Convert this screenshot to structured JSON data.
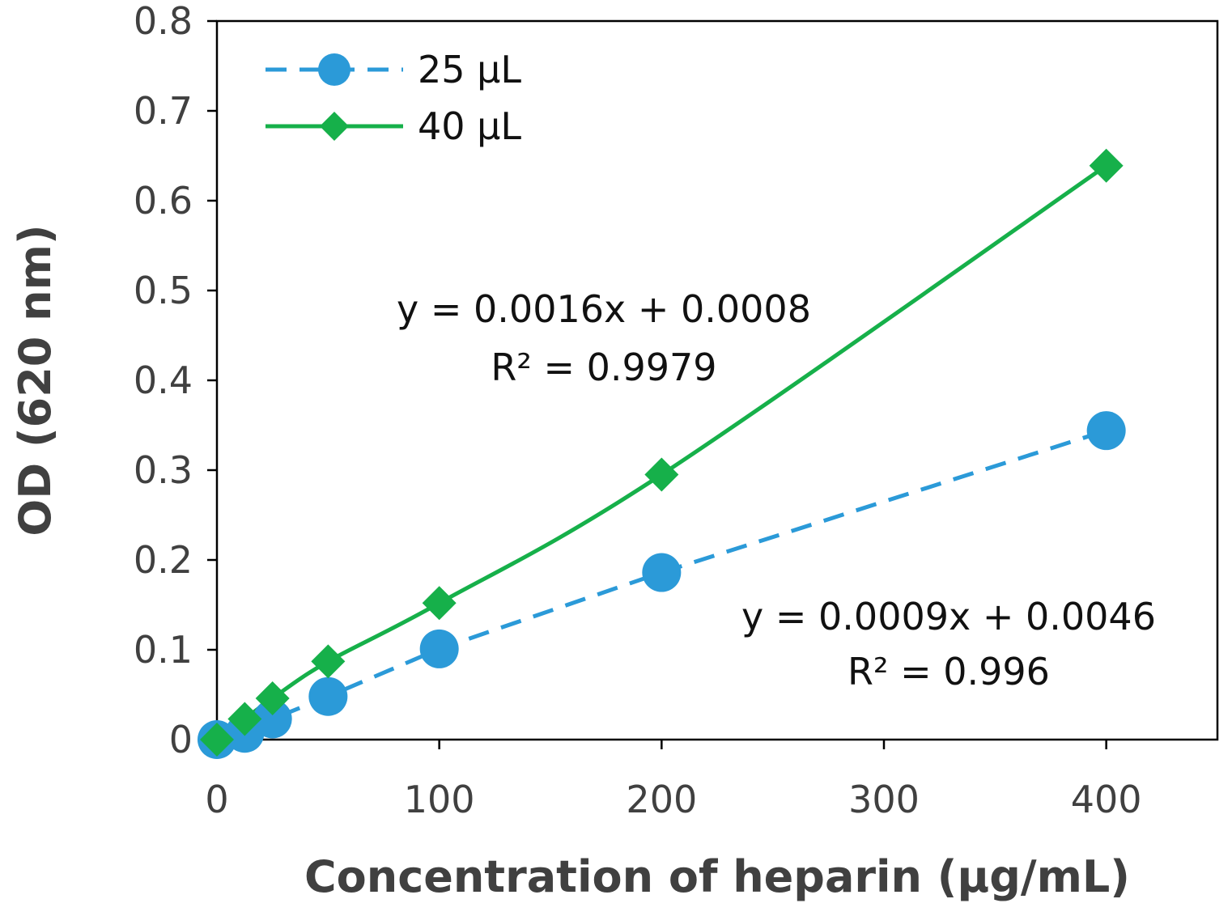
{
  "chart_data": {
    "type": "line",
    "title": "",
    "xlabel": "Concentration of heparin (µg/mL)",
    "ylabel": "OD (620 nm)",
    "xlim": [
      0,
      450
    ],
    "ylim": [
      0,
      0.8
    ],
    "xticks": [
      0,
      100,
      200,
      300,
      400
    ],
    "xtick_labels": [
      "0",
      "100",
      "200",
      "300",
      "400"
    ],
    "yticks": [
      0,
      0.1,
      0.2,
      0.3,
      0.4,
      0.5,
      0.6,
      0.7,
      0.8
    ],
    "ytick_labels": [
      "0",
      "0.1",
      "0.2",
      "0.3",
      "0.4",
      "0.5",
      "0.6",
      "0.7",
      "0.8"
    ],
    "grid": false,
    "legend_position": "top-left",
    "series": [
      {
        "name": "25 µL",
        "color": "#2b9ad8",
        "marker": "circle",
        "line_style": "dashed",
        "x": [
          0,
          12.5,
          25,
          50,
          100,
          200,
          400
        ],
        "y": [
          0.0,
          0.007,
          0.023,
          0.048,
          0.101,
          0.186,
          0.344
        ]
      },
      {
        "name": "40 µL",
        "color": "#16b04a",
        "marker": "diamond",
        "line_style": "solid",
        "x": [
          0,
          12.5,
          25,
          50,
          100,
          200,
          400
        ],
        "y": [
          0.0,
          0.023,
          0.046,
          0.087,
          0.152,
          0.295,
          0.639
        ]
      }
    ],
    "annotations": [
      {
        "series": "40 µL",
        "equation": "y = 0.0016x + 0.0008",
        "r2": "R² = 0.9979"
      },
      {
        "series": "25 µL",
        "equation": "y = 0.0009x + 0.0046",
        "r2": "R² = 0.996"
      }
    ]
  }
}
